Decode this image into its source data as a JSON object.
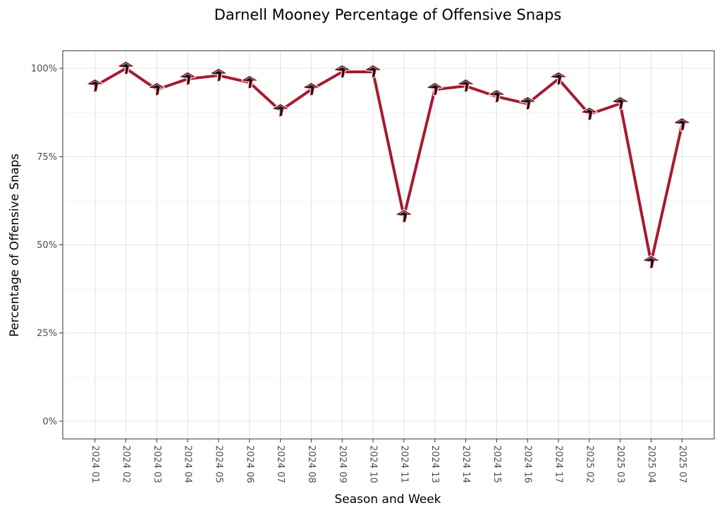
{
  "chart_data": {
    "type": "line",
    "title": "Darnell Mooney Percentage of Offensive Snaps",
    "xlabel": "Season and Week",
    "ylabel": "Percentage of Offensive Snaps",
    "ylim": [
      -0.05,
      1.05
    ],
    "yticks": [
      0,
      0.25,
      0.5,
      0.75,
      1.0
    ],
    "ytick_labels": [
      "0%",
      "25%",
      "50%",
      "75%",
      "100%"
    ],
    "grid": true,
    "categories": [
      "2024 01",
      "2024 02",
      "2024 03",
      "2024 04",
      "2024 05",
      "2024 06",
      "2024 07",
      "2024 08",
      "2024 09",
      "2024 10",
      "2024 11",
      "2024 13",
      "2024 14",
      "2024 15",
      "2024 16",
      "2024 17",
      "2025 02",
      "2025 03",
      "2025 04",
      "2025 07"
    ],
    "series": [
      {
        "name": "Darnell Mooney",
        "color": "#a71930",
        "marker": "falcons-logo-icon",
        "values": [
          0.95,
          1.0,
          0.94,
          0.97,
          0.98,
          0.96,
          0.88,
          0.94,
          0.99,
          0.99,
          0.58,
          0.94,
          0.95,
          0.92,
          0.9,
          0.97,
          0.87,
          0.9,
          0.45,
          0.84
        ]
      }
    ]
  }
}
